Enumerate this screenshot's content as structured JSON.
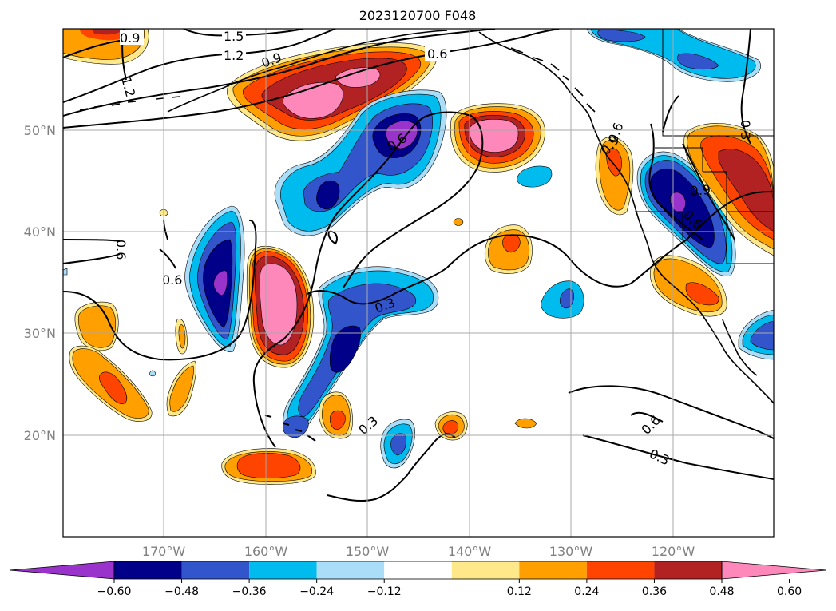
{
  "title": "2023120700 F048",
  "map": {
    "lat_labels": [
      "50°N",
      "40°N",
      "30°N",
      "20°N"
    ],
    "lon_labels": [
      "170°W",
      "160°W",
      "150°W",
      "140°W",
      "130°W",
      "120°W"
    ],
    "contour_labels": [
      "0.9",
      "1.5",
      "1.2",
      "1.2",
      "0.9",
      "0.6",
      "0.6",
      "0.6",
      "0.6",
      "0.3",
      "0.3",
      "0.6",
      "0.3",
      "0.9",
      "0.9",
      "0.6",
      "0.3",
      "0.6"
    ]
  },
  "colorbar": {
    "ticks": [
      "−0.60",
      "−0.48",
      "−0.36",
      "−0.24",
      "−0.12",
      "0.12",
      "0.24",
      "0.36",
      "0.48",
      "0.60"
    ],
    "colors": [
      "#9933cc",
      "#000088",
      "#3355cc",
      "#00bbee",
      "#aaddf8",
      "#ffffff",
      "#ffe88a",
      "#ffa000",
      "#ff4400",
      "#b22222",
      "#ff88bb",
      "#ff88bb"
    ],
    "extend": "both"
  },
  "palette": {
    "purple": "#9933cc",
    "navy": "#000088",
    "blue": "#3355cc",
    "cyan": "#00bbee",
    "lightblue": "#aaddf8",
    "yellow": "#ffe88a",
    "orange": "#ffa000",
    "redorange": "#ff4400",
    "darkred": "#b22222",
    "pink": "#ff88bb"
  }
}
